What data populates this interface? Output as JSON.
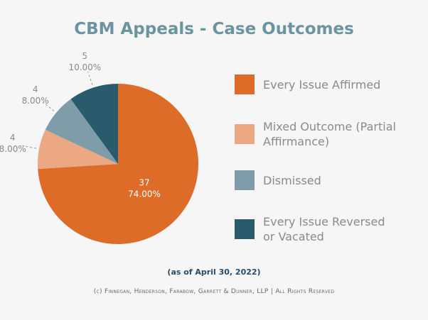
{
  "chart_data": {
    "type": "pie",
    "title": "CBM Appeals - Case Outcomes",
    "categories": [
      "Every Issue Affirmed",
      "Mixed Outcome (Partial Affirmance)",
      "Dismissed",
      "Every Issue Reversed or Vacated"
    ],
    "values": [
      74,
      8,
      8,
      10
    ],
    "value_labels": [
      "74.00%",
      "8.00%",
      "8.00%",
      "10.00%"
    ],
    "counts": [
      37,
      4,
      4,
      5
    ],
    "colors": [
      "#dc6c27",
      "#eba883",
      "#7f9ca9",
      "#295b6c"
    ],
    "legend": "right",
    "note": "(as of April 30, 2022)",
    "copyright": "(c) Finnegan, Henderson, Farabow, Garrett & Dunner, LLP | All Rights Reserved"
  }
}
